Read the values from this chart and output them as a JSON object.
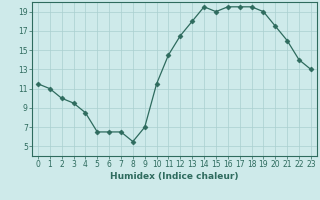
{
  "xlabel": "Humidex (Indice chaleur)",
  "x": [
    0,
    1,
    2,
    3,
    4,
    5,
    6,
    7,
    8,
    9,
    10,
    11,
    12,
    13,
    14,
    15,
    16,
    17,
    18,
    19,
    20,
    21,
    22,
    23
  ],
  "y": [
    11.5,
    11.0,
    10.0,
    9.5,
    8.5,
    6.5,
    6.5,
    6.5,
    5.5,
    7.0,
    11.5,
    14.5,
    16.5,
    18.0,
    19.5,
    19.0,
    19.5,
    19.5,
    19.5,
    19.0,
    17.5,
    16.0,
    14.0,
    13.0
  ],
  "line_color": "#2e6b5e",
  "marker": "D",
  "marker_size": 2.5,
  "bg_color": "#ceeaea",
  "grid_color": "#aacfcf",
  "ylim": [
    4,
    20
  ],
  "xlim": [
    -0.5,
    23.5
  ],
  "yticks": [
    5,
    7,
    9,
    11,
    13,
    15,
    17,
    19
  ],
  "xticks": [
    0,
    1,
    2,
    3,
    4,
    5,
    6,
    7,
    8,
    9,
    10,
    11,
    12,
    13,
    14,
    15,
    16,
    17,
    18,
    19,
    20,
    21,
    22,
    23
  ],
  "tick_fontsize": 5.5,
  "xlabel_fontsize": 6.5,
  "axis_color": "#2e6b5e",
  "linewidth": 0.9
}
